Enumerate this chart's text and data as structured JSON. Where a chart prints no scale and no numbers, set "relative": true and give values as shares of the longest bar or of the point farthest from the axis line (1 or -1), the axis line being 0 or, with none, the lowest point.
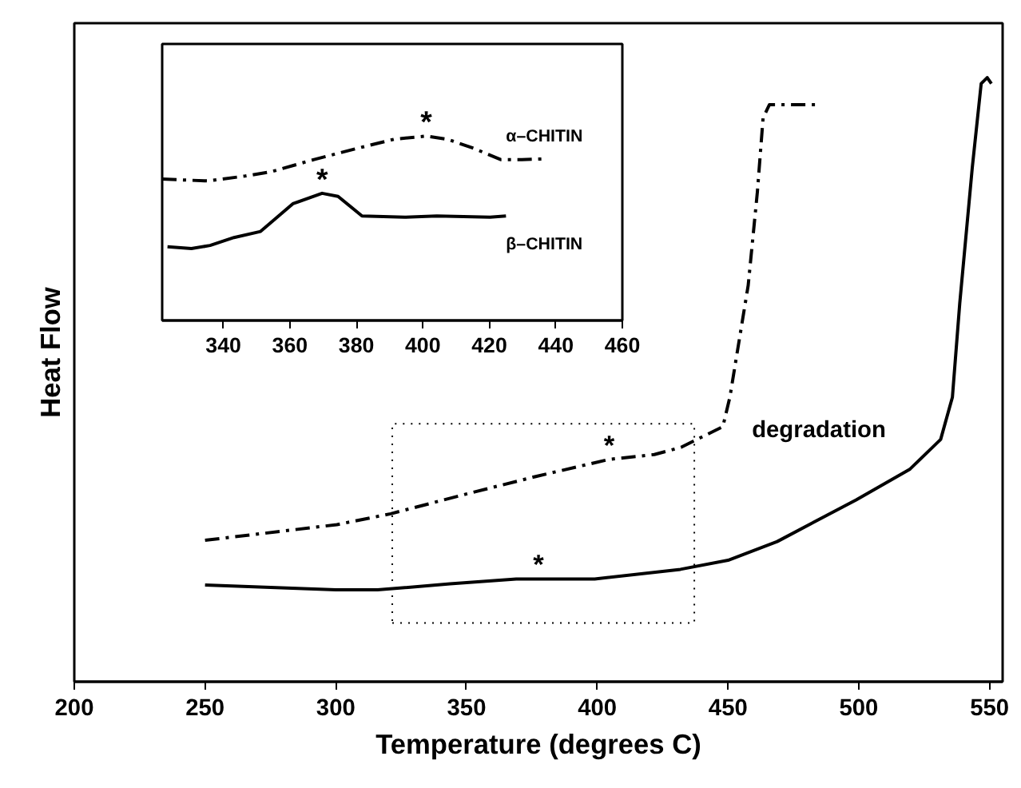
{
  "chart_data": [
    {
      "type": "line",
      "relative": true,
      "xlabel": "Temperature (degrees C)",
      "ylabel": "Heat Flow",
      "xlim": [
        200,
        555
      ],
      "xticks": [
        200,
        250,
        300,
        350,
        400,
        450,
        500,
        550
      ],
      "grid": false,
      "series": [
        {
          "color": "#000000",
          "line_style": "dashed",
          "x": [
            250,
            300.4,
            321,
            350.2,
            376.8,
            404.5,
            421.8,
            432,
            448,
            450.7,
            457.7,
            461.2,
            463.4,
            465.8,
            485
          ],
          "values": [
            0.234,
            0.26,
            0.278,
            0.311,
            0.34,
            0.368,
            0.376,
            0.388,
            0.422,
            0.471,
            0.656,
            0.81,
            0.933,
            0.955,
            0.955
          ]
        },
        {
          "color": "#000000",
          "line_style": "solid",
          "x": [
            250,
            300,
            316,
            343.7,
            369,
            399,
            431.8,
            450,
            468.8,
            499,
            519.6,
            531.3,
            535.8,
            538.6,
            543.4,
            546.8,
            549.1,
            550.7
          ],
          "values": [
            0.16,
            0.152,
            0.152,
            0.162,
            0.17,
            0.17,
            0.186,
            0.201,
            0.232,
            0.301,
            0.352,
            0.401,
            0.471,
            0.626,
            0.851,
            0.99,
            1.0,
            0.99
          ]
        }
      ],
      "annotations": [
        {
          "text": "*",
          "x": 404.5,
          "y": 0.368
        },
        {
          "text": "*",
          "x": 377.5,
          "y": 0.17
        },
        "degradation"
      ]
    },
    {
      "type": "line",
      "relative": true,
      "xlim": [
        321.6,
        460
      ],
      "xticks": [
        340,
        360,
        380,
        400,
        420,
        440,
        460
      ],
      "grid": false,
      "series": [
        {
          "name": "α–CHITIN",
          "color": "#000000",
          "line_style": "dashed",
          "x": [
            321.6,
            335.2,
            346.4,
            354.4,
            367.3,
            380.1,
            391.3,
            401,
            407.4,
            415.4,
            423.4,
            429.8,
            437.1
          ],
          "values": [
            0.767,
            0.757,
            0.783,
            0.807,
            0.873,
            0.933,
            0.983,
            1.0,
            0.983,
            0.933,
            0.873,
            0.873,
            0.877
          ]
        },
        {
          "name": "β–CHITIN",
          "color": "#000000",
          "line_style": "solid",
          "x": [
            323.2,
            330.4,
            336,
            343.2,
            351.2,
            360.9,
            369.7,
            374.5,
            381.7,
            394.5,
            404.2,
            420.2,
            425
          ],
          "values": [
            0.4,
            0.39,
            0.407,
            0.45,
            0.483,
            0.633,
            0.69,
            0.673,
            0.567,
            0.56,
            0.567,
            0.56,
            0.567
          ]
        }
      ],
      "annotations": [
        {
          "text": "*",
          "x": 401,
          "y": 1.0
        },
        {
          "text": "*",
          "x": 369.7,
          "y": 0.69
        }
      ]
    }
  ]
}
